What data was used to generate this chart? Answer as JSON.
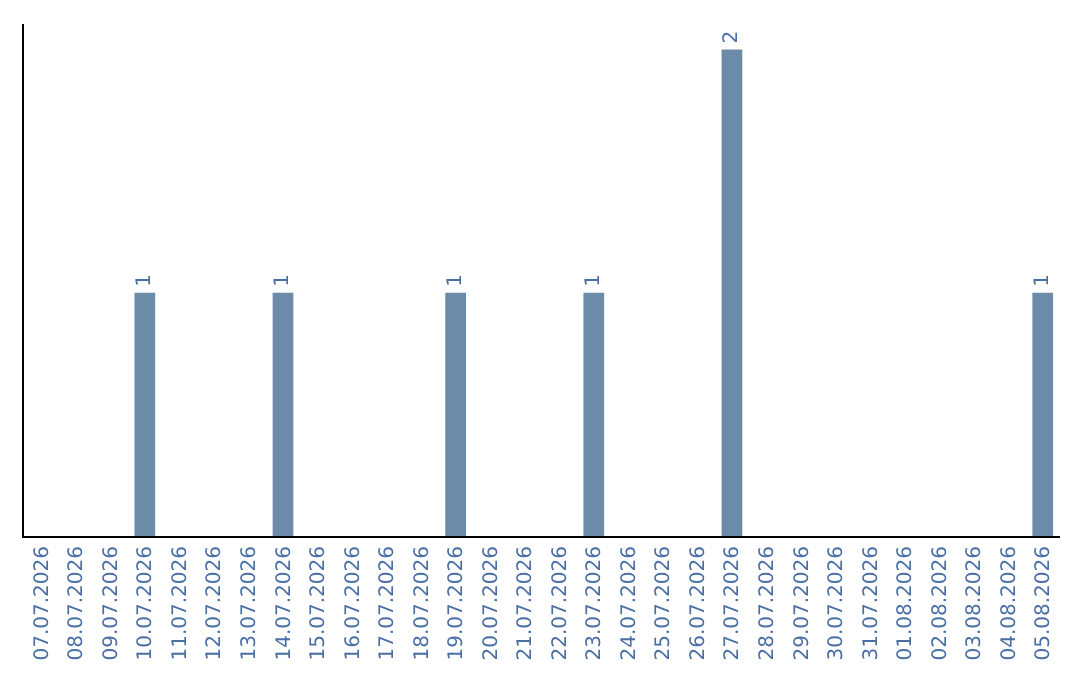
{
  "chart_data": {
    "type": "bar",
    "categories": [
      "07.07.2026",
      "08.07.2026",
      "09.07.2026",
      "10.07.2026",
      "11.07.2026",
      "12.07.2026",
      "13.07.2026",
      "14.07.2026",
      "15.07.2026",
      "16.07.2026",
      "17.07.2026",
      "18.07.2026",
      "19.07.2026",
      "20.07.2026",
      "21.07.2026",
      "22.07.2026",
      "23.07.2026",
      "24.07.2026",
      "25.07.2026",
      "26.07.2026",
      "27.07.2026",
      "28.07.2026",
      "29.07.2026",
      "30.07.2026",
      "31.07.2026",
      "01.08.2026",
      "02.08.2026",
      "03.08.2026",
      "04.08.2026",
      "05.08.2026"
    ],
    "values": [
      0,
      0,
      0,
      1,
      0,
      0,
      0,
      1,
      0,
      0,
      0,
      0,
      1,
      0,
      0,
      0,
      1,
      0,
      0,
      0,
      2,
      0,
      0,
      0,
      0,
      0,
      0,
      0,
      0,
      1
    ],
    "value_labels": [
      null,
      null,
      null,
      "1",
      null,
      null,
      null,
      "1",
      null,
      null,
      null,
      null,
      "1",
      null,
      null,
      null,
      "1",
      null,
      null,
      null,
      "2",
      null,
      null,
      null,
      null,
      null,
      null,
      null,
      null,
      "1"
    ],
    "color": "#6b8ba8",
    "tick_labels": "x",
    "legend": false
  }
}
